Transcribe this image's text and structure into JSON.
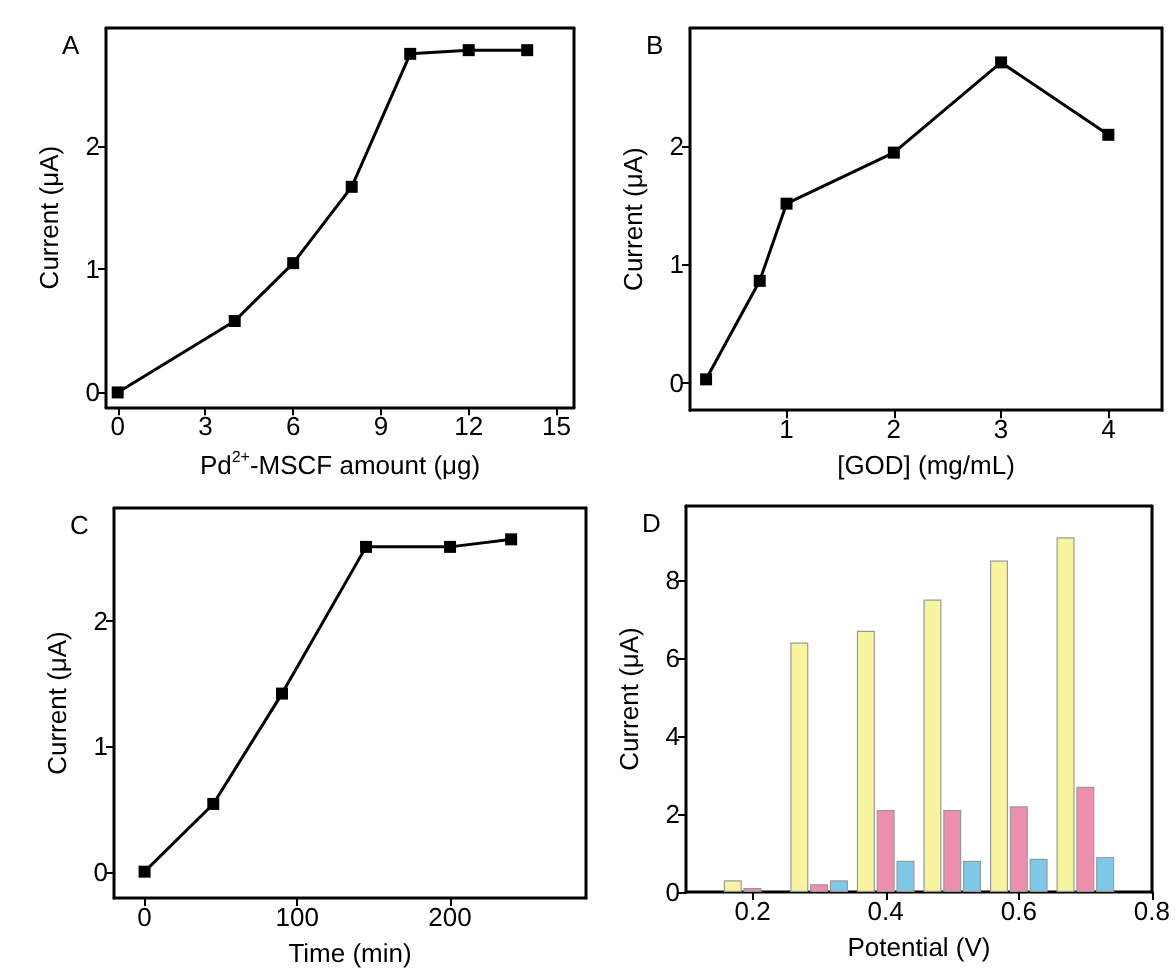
{
  "chart_data": [
    {
      "type": "line",
      "annotations": [
        "A"
      ],
      "xlabel": "Pd$^{2+}$-MSCF amount (μg)",
      "ylabel": "Current (μA)",
      "x": [
        0,
        4,
        6,
        8,
        10,
        12,
        14
      ],
      "series": [
        {
          "color": "#000000",
          "values": [
            0,
            0.58,
            1.05,
            1.67,
            2.75,
            2.78,
            2.78
          ]
        }
      ],
      "xlim": [
        -0.4,
        15.6
      ],
      "xticks": [
        0,
        3,
        6,
        9,
        12,
        15
      ],
      "ylim": [
        -0.12,
        2.96
      ],
      "yticks": [
        0,
        1,
        2
      ],
      "grid": false,
      "marker": "square",
      "line_style": "solid"
    },
    {
      "type": "line",
      "annotations": [
        "B"
      ],
      "xlabel": "[GOD] (mg/mL)",
      "ylabel": "Current (μA)",
      "x": [
        0.25,
        0.75,
        1,
        2,
        3,
        4
      ],
      "series": [
        {
          "color": "#000000",
          "values": [
            0.03,
            0.86,
            1.51,
            1.94,
            2.7,
            2.09
          ]
        }
      ],
      "xlim": [
        0.1,
        4.5
      ],
      "xticks": [
        1,
        2,
        3,
        4
      ],
      "ylim": [
        -0.23,
        2.99
      ],
      "yticks": [
        0,
        1,
        2
      ],
      "grid": false,
      "marker": "square",
      "line_style": "solid"
    },
    {
      "type": "line",
      "annotations": [
        "C"
      ],
      "xlabel": "Time (min)",
      "ylabel": "Current (μA)",
      "x": [
        0,
        45,
        90,
        145,
        200,
        240
      ],
      "series": [
        {
          "color": "#000000",
          "values": [
            0,
            0.54,
            1.42,
            2.59,
            2.59,
            2.65
          ]
        }
      ],
      "xlim": [
        -20,
        289
      ],
      "xticks": [
        0,
        100,
        200
      ],
      "ylim": [
        -0.21,
        2.9
      ],
      "yticks": [
        0,
        1,
        2
      ],
      "grid": false,
      "marker": "square",
      "line_style": "solid"
    },
    {
      "type": "bar",
      "annotations": [
        "D"
      ],
      "xlabel": "Potential (V)",
      "ylabel": "Current (μA)",
      "x": [
        0.2,
        0.3,
        0.4,
        0.5,
        0.6,
        0.7
      ],
      "series": [
        {
          "color": "#f8f4a0",
          "values": [
            0.3,
            6.4,
            6.7,
            7.5,
            8.5,
            9.1
          ]
        },
        {
          "color": "#ee8fb0",
          "values": [
            0.1,
            0.2,
            2.1,
            2.1,
            2.2,
            2.7
          ]
        },
        {
          "color": "#80c8e8",
          "values": [
            null,
            0.3,
            0.8,
            0.8,
            0.85,
            0.9
          ]
        }
      ],
      "xlim": [
        0.1,
        0.8
      ],
      "xticks": [
        0.2,
        0.4,
        0.6,
        0.8
      ],
      "ylim": [
        0,
        9.9
      ],
      "yticks": [
        0,
        2,
        4,
        6,
        8
      ],
      "grid": false
    }
  ]
}
